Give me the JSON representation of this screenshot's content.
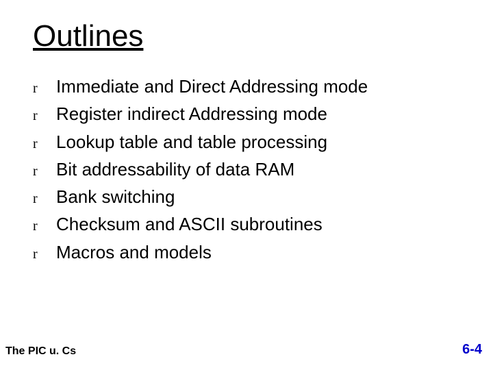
{
  "title": "Outlines",
  "bullet_marker": "r",
  "bullets": [
    "Immediate and Direct Addressing mode",
    "Register indirect Addressing mode",
    "Lookup table and table processing",
    "Bit addressability of data RAM",
    "Bank switching",
    "Checksum and ASCII subroutines",
    "Macros and models"
  ],
  "footer_left": "The PIC u. Cs",
  "footer_right": "6-4",
  "colors": {
    "background": "#ffffff",
    "text": "#000000",
    "footer_right": "#0000cc"
  },
  "fonts": {
    "body": "Comic Sans MS",
    "marker": "Times New Roman",
    "title_size_pt": 44,
    "bullet_size_pt": 26,
    "footer_left_size_pt": 16,
    "footer_right_size_pt": 20
  }
}
